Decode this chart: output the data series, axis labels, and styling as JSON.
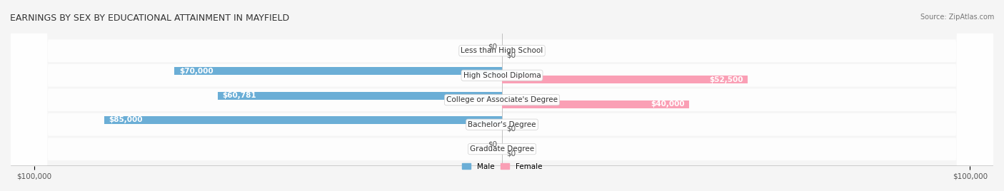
{
  "title": "EARNINGS BY SEX BY EDUCATIONAL ATTAINMENT IN MAYFIELD",
  "source": "Source: ZipAtlas.com",
  "categories": [
    "Less than High School",
    "High School Diploma",
    "College or Associate's Degree",
    "Bachelor's Degree",
    "Graduate Degree"
  ],
  "male_values": [
    0,
    70000,
    60781,
    85000,
    0
  ],
  "female_values": [
    0,
    52500,
    40000,
    0,
    0
  ],
  "male_labels": [
    "$0",
    "$70,000",
    "$60,781",
    "$85,000",
    "$0"
  ],
  "female_labels": [
    "$0",
    "$52,500",
    "$40,000",
    "$0",
    "$0"
  ],
  "male_color": "#6baed6",
  "male_color_dark": "#4292c6",
  "female_color": "#fa9fb5",
  "female_color_dark": "#f768a1",
  "male_zero_color": "#c6dbef",
  "female_zero_color": "#fcc5d8",
  "x_max": 100000,
  "xlabel_left": "$100,000",
  "xlabel_right": "$100,000",
  "legend_male": "Male",
  "legend_female": "Female",
  "bg_color": "#f0f0f0",
  "row_bg": "#e8e8e8",
  "title_fontsize": 9,
  "source_fontsize": 7,
  "label_fontsize": 7.5,
  "axis_fontsize": 7.5
}
